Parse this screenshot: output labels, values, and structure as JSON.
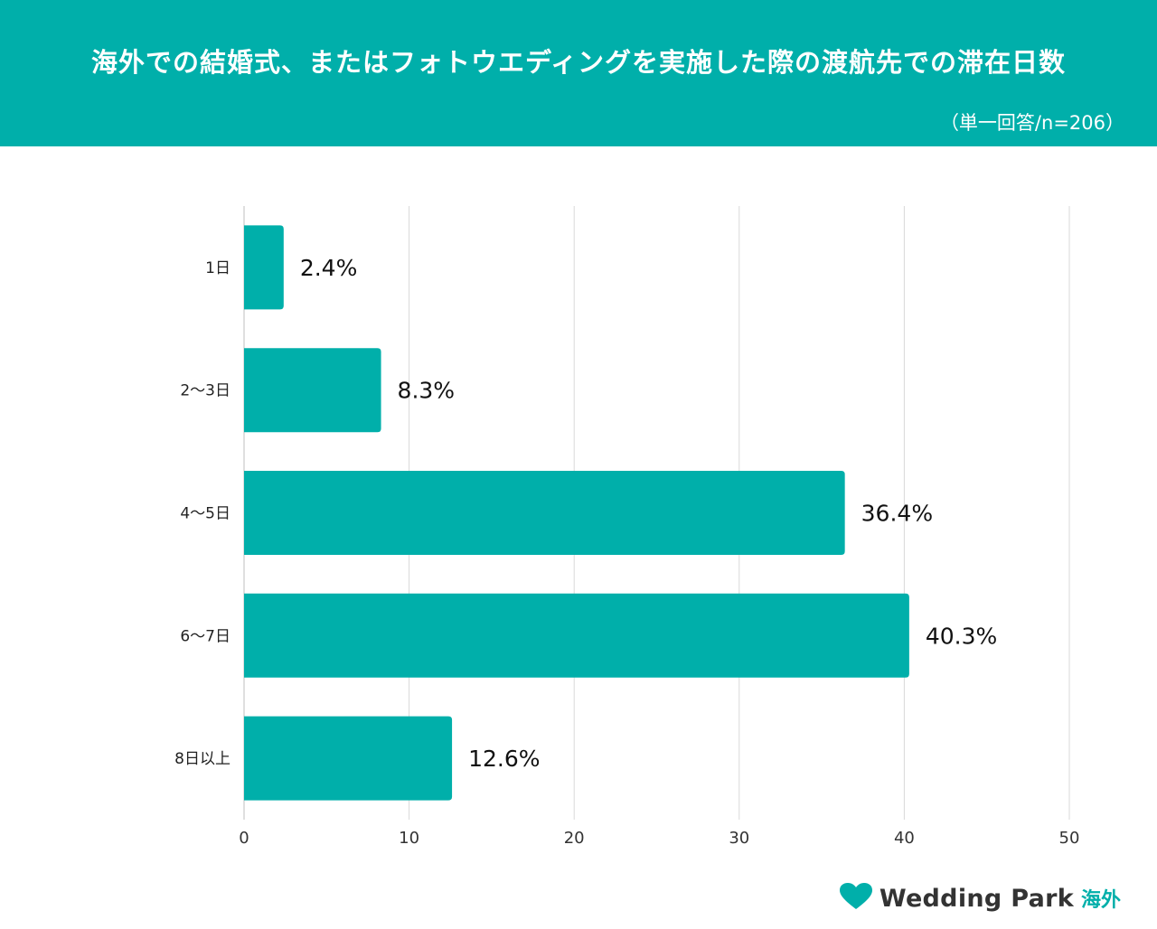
{
  "header": {
    "title": "海外での結婚式、またはフォトウエディングを実施した際の渡航先での滞在日数",
    "subtitle": "（単一回答/n=206）"
  },
  "chart_data": {
    "type": "bar",
    "orientation": "horizontal",
    "categories": [
      "1日",
      "2〜3日",
      "4〜5日",
      "6〜7日",
      "8日以上"
    ],
    "values": [
      2.4,
      8.3,
      36.4,
      40.3,
      12.6
    ],
    "value_labels": [
      "2.4%",
      "8.3%",
      "36.4%",
      "40.3%",
      "12.6%"
    ],
    "xlim": [
      0,
      50
    ],
    "xticks": [
      0,
      10,
      20,
      30,
      40,
      50
    ],
    "grid": true,
    "legend": "none",
    "bar_color": "#00AFAA"
  },
  "brand": {
    "name": "Wedding Park",
    "suffix": "海外",
    "icon": "heart-icon",
    "color": "#00AFAA"
  },
  "colors": {
    "header_bg": "#00AFAA",
    "grid": "#D9D9D9",
    "axis": "#BFBFBF"
  }
}
